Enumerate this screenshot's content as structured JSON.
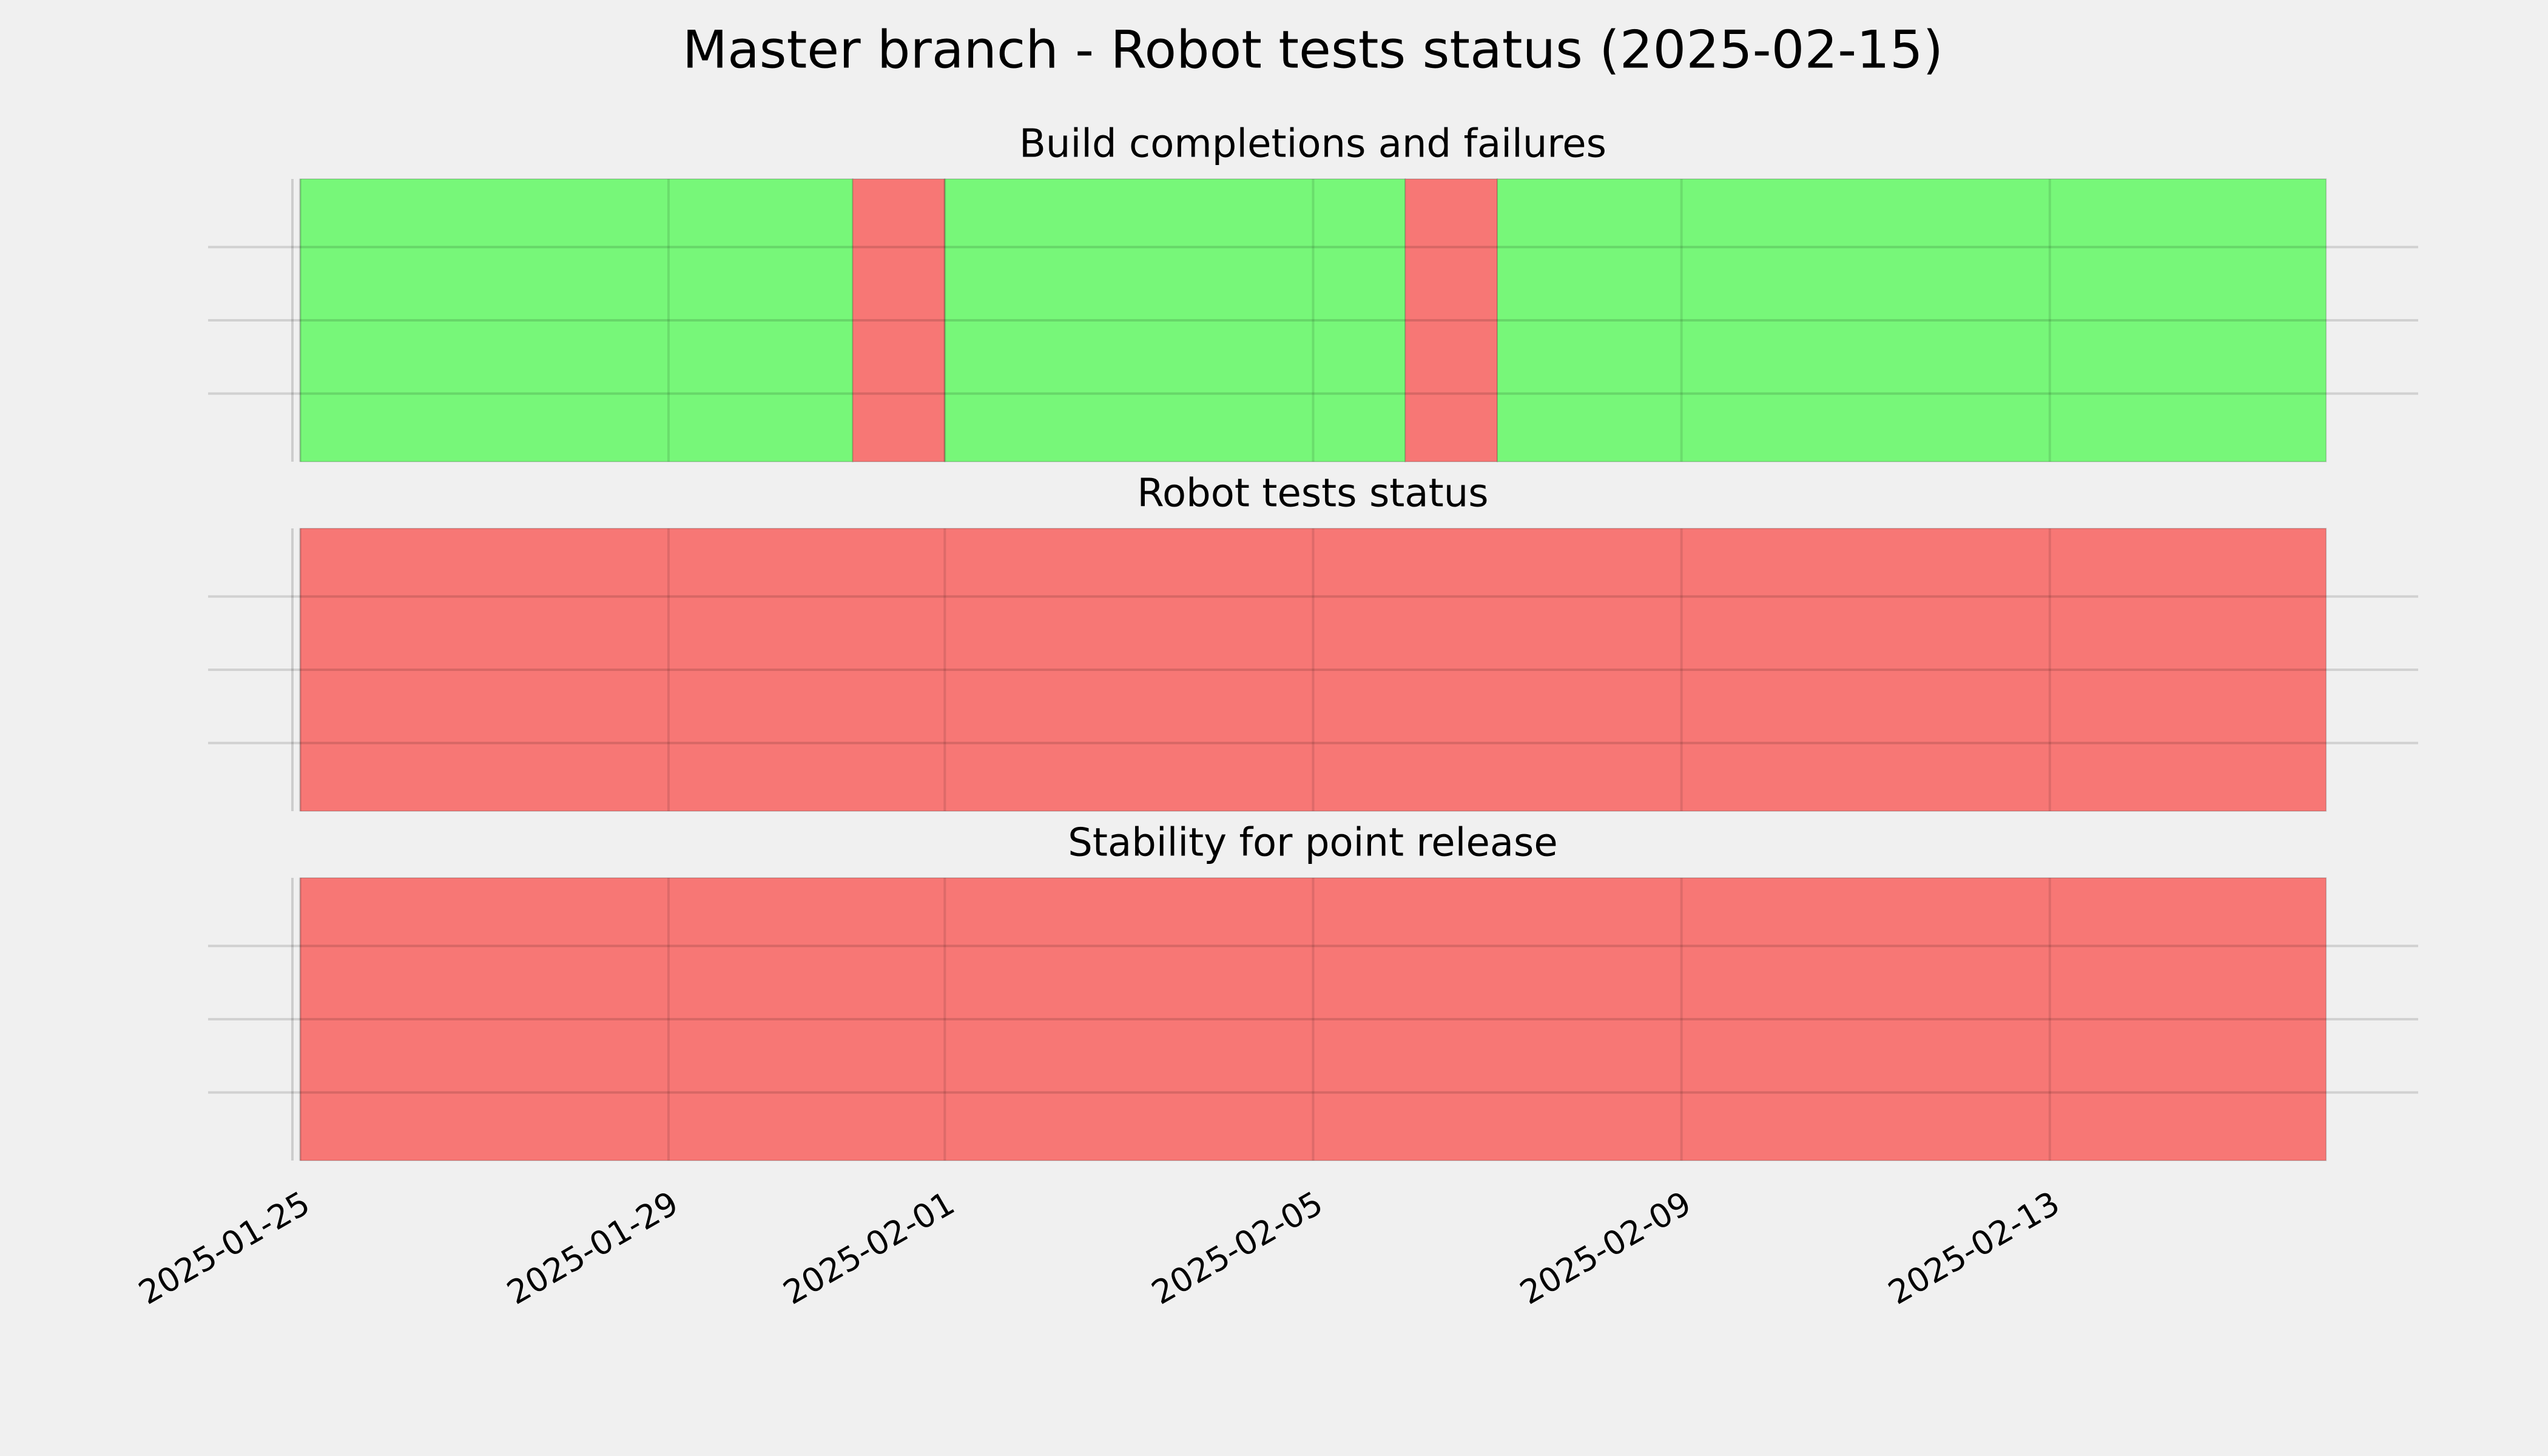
{
  "chart_data": {
    "type": "timeline",
    "title": "Master branch - Robot tests status (2025-02-15)",
    "xlim": [
      "2025-01-24",
      "2025-02-17"
    ],
    "xticks": [
      "2025-01-25",
      "2025-01-29",
      "2025-02-01",
      "2025-02-05",
      "2025-02-09",
      "2025-02-13"
    ],
    "grid": true,
    "panels": [
      {
        "title": "Build completions and failures",
        "segments": [
          {
            "start": "2025-01-25",
            "end": "2025-01-31",
            "color": "#77f779"
          },
          {
            "start": "2025-01-31",
            "end": "2025-02-01",
            "color": "#f77775"
          },
          {
            "start": "2025-02-01",
            "end": "2025-02-06",
            "color": "#77f779"
          },
          {
            "start": "2025-02-06",
            "end": "2025-02-07",
            "color": "#f77775"
          },
          {
            "start": "2025-02-07",
            "end": "2025-02-16",
            "color": "#77f779"
          }
        ]
      },
      {
        "title": "Robot tests status",
        "segments": [
          {
            "start": "2025-01-25",
            "end": "2025-02-16",
            "color": "#f77775"
          }
        ]
      },
      {
        "title": "Stability for point release",
        "segments": [
          {
            "start": "2025-01-25",
            "end": "2025-02-16",
            "color": "#f77775"
          }
        ]
      }
    ]
  }
}
